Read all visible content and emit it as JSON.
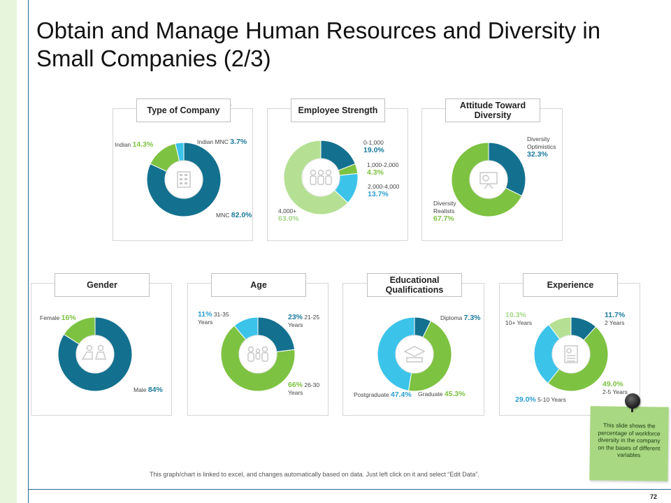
{
  "page": {
    "title": "Obtain and Manage Human Resources and Diversity in Small Companies (2/3)",
    "footer_note": "This graph/chart is linked to excel, and changes automatically based on data. Just left click on it and select “Edit Data”.",
    "page_number": "72",
    "sticky_note": "This slide shows the percentage of workforce diversity in the company on the bases of different variables"
  },
  "colors": {
    "teal": "#13718f",
    "green": "#7dc241",
    "light_green": "#b5e094",
    "cyan": "#3cc3ea"
  },
  "panels": {
    "company": {
      "title": "Type of Company",
      "icon": "building-icon",
      "labels": [
        {
          "name": "Indian",
          "pct": "14.3%"
        },
        {
          "name": "Indian MNC",
          "pct": "3.7%"
        },
        {
          "name": "MNC",
          "pct": "82.0%"
        }
      ]
    },
    "strength": {
      "title": "Employee Strength",
      "icon": "people-group-icon",
      "labels": [
        {
          "name": "0-1,000",
          "pct": "19.0%"
        },
        {
          "name": "1,000-2,000",
          "pct": "4.3%"
        },
        {
          "name": "2,000-4,000",
          "pct": "13.7%"
        },
        {
          "name": "4,000+",
          "pct": "63.0%"
        }
      ]
    },
    "attitude": {
      "title": "Attitude Toward Diversity",
      "icon": "presentation-board-icon",
      "labels": [
        {
          "name": "Diversity Optimistics",
          "pct": "32.3%"
        },
        {
          "name": "Diversity Realists",
          "pct": "67.7%"
        }
      ]
    },
    "gender": {
      "title": "Gender",
      "icon": "male-female-icon",
      "labels": [
        {
          "name": "Female",
          "pct": "16%"
        },
        {
          "name": "Male",
          "pct": "84%"
        }
      ]
    },
    "age": {
      "title": "Age",
      "icon": "family-icon",
      "labels": [
        {
          "name": "31-35 Years",
          "pct": "11%"
        },
        {
          "name": "21-25 Years",
          "pct": "23%"
        },
        {
          "name": "26-30 Years",
          "pct": "66%"
        }
      ]
    },
    "education": {
      "title": "Educational Qualifications",
      "icon": "graduation-cap-icon",
      "labels": [
        {
          "name": "Diploma",
          "pct": "7.3%"
        },
        {
          "name": "Graduate",
          "pct": "45.3%"
        },
        {
          "name": "Postgraduate",
          "pct": "47.4%"
        }
      ]
    },
    "experience": {
      "title": "Experience",
      "icon": "resume-icon",
      "labels": [
        {
          "name": "10+ Years",
          "pct": "10.3%"
        },
        {
          "name": "2 Years",
          "pct": "11.7%"
        },
        {
          "name": "2-5 Years",
          "pct": "49.0%"
        },
        {
          "name": "5-10 Years",
          "pct": "29.0%"
        }
      ]
    }
  },
  "chart_data": [
    {
      "type": "pie",
      "id": "company",
      "title": "Type of Company",
      "categories": [
        "MNC",
        "Indian",
        "Indian MNC"
      ],
      "values": [
        82.0,
        14.3,
        3.7
      ],
      "colors": [
        "#13718f",
        "#7dc241",
        "#3cc3ea"
      ]
    },
    {
      "type": "pie",
      "id": "strength",
      "title": "Employee Strength",
      "categories": [
        "0-1,000",
        "1,000-2,000",
        "2,000-4,000",
        "4,000+"
      ],
      "values": [
        19.0,
        4.3,
        13.7,
        63.0
      ],
      "colors": [
        "#13718f",
        "#7dc241",
        "#3cc3ea",
        "#b5e094"
      ]
    },
    {
      "type": "pie",
      "id": "attitude",
      "title": "Attitude Toward Diversity",
      "categories": [
        "Diversity Optimistics",
        "Diversity Realists"
      ],
      "values": [
        32.3,
        67.7
      ],
      "colors": [
        "#13718f",
        "#7dc241"
      ]
    },
    {
      "type": "pie",
      "id": "gender",
      "title": "Gender",
      "categories": [
        "Male",
        "Female"
      ],
      "values": [
        84,
        16
      ],
      "colors": [
        "#13718f",
        "#7dc241"
      ]
    },
    {
      "type": "pie",
      "id": "age",
      "title": "Age",
      "categories": [
        "21-25 Years",
        "26-30 Years",
        "31-35 Years"
      ],
      "values": [
        23,
        66,
        11
      ],
      "colors": [
        "#13718f",
        "#7dc241",
        "#3cc3ea"
      ]
    },
    {
      "type": "pie",
      "id": "education",
      "title": "Educational Qualifications",
      "categories": [
        "Diploma",
        "Graduate",
        "Postgraduate"
      ],
      "values": [
        7.3,
        45.3,
        47.4
      ],
      "colors": [
        "#13718f",
        "#7dc241",
        "#3cc3ea"
      ]
    },
    {
      "type": "pie",
      "id": "experience",
      "title": "Experience",
      "categories": [
        "2 Years",
        "2-5 Years",
        "5-10 Years",
        "10+ Years"
      ],
      "values": [
        11.7,
        49.0,
        29.0,
        10.3
      ],
      "colors": [
        "#13718f",
        "#7dc241",
        "#3cc3ea",
        "#b5e094"
      ]
    }
  ]
}
